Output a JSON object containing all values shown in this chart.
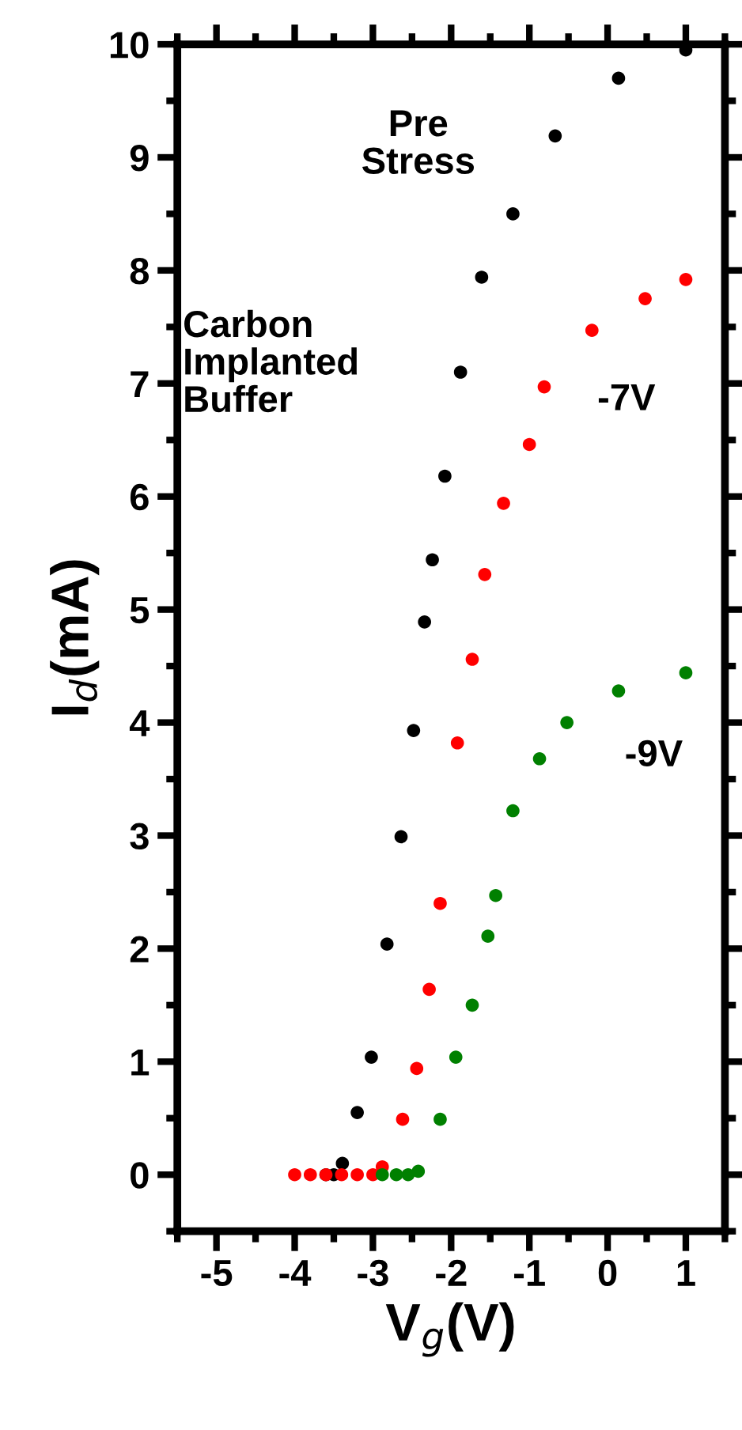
{
  "chart_data": {
    "type": "scatter",
    "xlabel": "V$_{g}$(V)",
    "ylabel": "I$_{d}$(mA)",
    "xlim": [
      -5.5,
      1.5
    ],
    "ylim": [
      -0.5,
      10
    ],
    "xticks": [
      -5,
      -4,
      -3,
      -2,
      -1,
      0,
      1
    ],
    "yticks": [
      0,
      1,
      2,
      3,
      4,
      5,
      6,
      7,
      8,
      9,
      10
    ],
    "marker": "circle",
    "grid": false,
    "legend": false,
    "annotations": [
      "Carbon\nImplanted\nBuffer",
      "Pre\nStress",
      "-7V",
      "-9V"
    ],
    "series": [
      {
        "color": "#000000",
        "x": [
          -3.6,
          -3.5,
          -3.39,
          -3.2,
          -3.02,
          -2.82,
          -2.64,
          -2.48,
          -2.34,
          -2.24,
          -2.08,
          -1.88,
          -1.61,
          -1.21,
          -0.67,
          0.14,
          1.0
        ],
        "values": [
          0,
          0,
          0.1,
          0.55,
          1.04,
          2.04,
          2.99,
          3.93,
          4.89,
          5.44,
          6.18,
          7.1,
          7.94,
          8.5,
          9.19,
          9.7,
          9.95
        ]
      },
      {
        "color": "#ff0000",
        "x": [
          -4.0,
          -3.8,
          -3.6,
          -3.4,
          -3.2,
          -3.0,
          -2.88,
          -2.62,
          -2.44,
          -2.28,
          -2.14,
          -1.92,
          -1.73,
          -1.57,
          -1.33,
          -1.0,
          -0.81,
          -0.2,
          0.48,
          1.0
        ],
        "values": [
          0,
          0,
          0,
          0,
          0,
          0,
          0.07,
          0.49,
          0.94,
          1.64,
          2.4,
          3.82,
          4.56,
          5.31,
          5.94,
          6.46,
          6.97,
          7.47,
          7.75,
          7.92
        ]
      },
      {
        "color": "#008000",
        "x": [
          -2.88,
          -2.7,
          -2.55,
          -2.42,
          -2.14,
          -1.94,
          -1.73,
          -1.53,
          -1.43,
          -1.21,
          -0.87,
          -0.52,
          0.14,
          1.0
        ],
        "values": [
          0,
          0,
          0,
          0.03,
          0.49,
          1.04,
          1.5,
          2.11,
          2.47,
          3.22,
          3.68,
          4.0,
          4.28,
          4.44
        ]
      }
    ]
  }
}
